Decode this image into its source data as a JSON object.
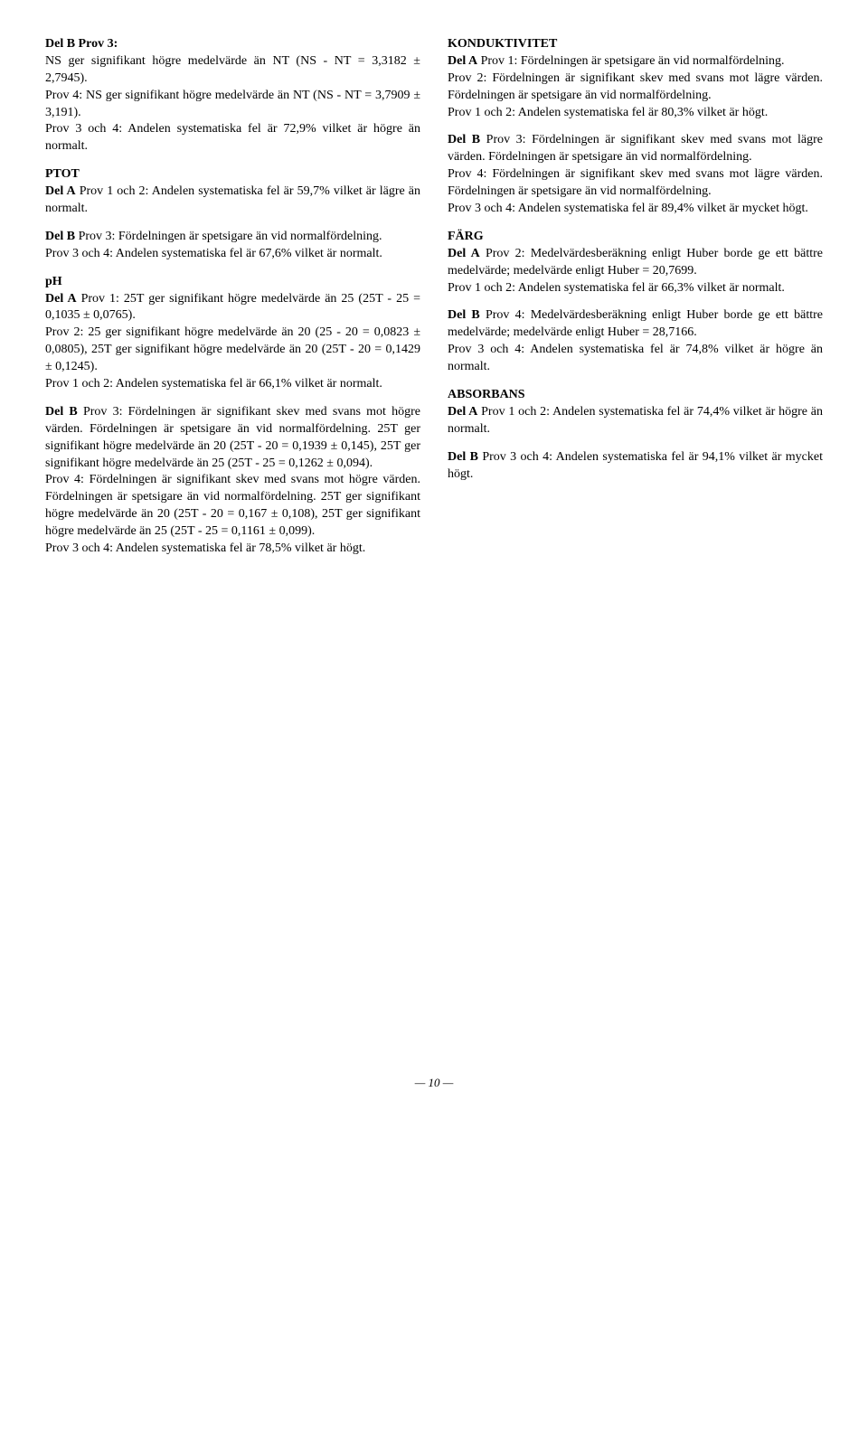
{
  "left": {
    "p1": "NS ger signifikant högre medelvärde än NT (NS - NT = 3,3182 ± 2,7945).",
    "p1lead": "Del B Prov 3:",
    "p2": "Prov 4: NS ger signifikant högre medelvärde än NT (NS - NT = 3,7909 ± 3,191).",
    "p3": "Prov 3 och 4: Andelen systematiska fel är 72,9% vilket är högre än normalt.",
    "ptot_head": "PTOT",
    "ptot_a": " Prov 1 och 2: Andelen systematiska fel är 59,7% vilket är lägre än normalt.",
    "ptot_a_lead": "Del A",
    "ptot_b": " Prov 3: Fördelningen är spetsigare än vid normalfördelning.",
    "ptot_b_lead": "Del B",
    "ptot_b2": "Prov 3 och 4: Andelen systematiska fel är 67,6% vilket är normalt.",
    "ph_head": "pH",
    "ph_a": " Prov 1: 25T ger signifikant högre medelvärde än 25 (25T - 25 = 0,1035 ± 0,0765).",
    "ph_a_lead": "Del A",
    "ph_a2": "Prov 2: 25 ger signifikant högre medelvärde än 20 (25 - 20 = 0,0823 ± 0,0805), 25T ger signifikant högre medelvärde än 20 (25T - 20 = 0,1429 ± 0,1245).",
    "ph_a3": "Prov 1 och 2: Andelen systematiska fel är 66,1% vilket är normalt.",
    "ph_b": " Prov 3: Fördelningen är signifikant skev med svans mot högre värden. Fördelningen är spetsigare än vid normalfördelning. 25T ger signifikant högre medelvärde än 20 (25T - 20 = 0,1939 ± 0,145), 25T ger signifikant högre medelvärde än 25 (25T - 25 = 0,1262 ± 0,094).",
    "ph_b_lead": "Del B",
    "ph_b2": "Prov 4: Fördelningen är signifikant skev med svans mot högre värden. Fördelningen är spetsigare än vid normalfördelning. 25T ger signifikant högre medelvärde än 20 (25T - 20 = 0,167 ± 0,108), 25T ger signifikant högre medelvärde än 25 (25T - 25 = 0,1161 ± 0,099).",
    "ph_b3": "Prov 3 och 4: Andelen systematiska fel är 78,5% vilket är högt."
  },
  "right": {
    "kond_head": "KONDUKTIVITET",
    "kond_a": " Prov 1: Fördelningen är spetsigare än vid normalfördelning.",
    "kond_a_lead": "Del A",
    "kond_a2": "Prov 2: Fördelningen är signifikant skev med svans mot lägre värden. Fördelningen är spetsigare än vid normalfördelning.",
    "kond_a3": "Prov 1 och 2: Andelen systematiska fel är 80,3% vilket är högt.",
    "kond_b": " Prov 3: Fördelningen är signifikant skev med svans mot lägre värden. Fördelningen är spetsigare än vid normalfördelning.",
    "kond_b_lead": "Del B",
    "kond_b2": "Prov 4: Fördelningen är signifikant skev med svans mot lägre värden. Fördelningen är spetsigare än vid normalfördelning.",
    "kond_b3": "Prov 3 och 4: Andelen systematiska fel är 89,4% vilket är mycket högt.",
    "farg_head": "FÄRG",
    "farg_a": " Prov 2: Medelvärdesberäkning enligt Huber borde ge ett bättre medelvärde; medelvärde enligt Huber = 20,7699.",
    "farg_a_lead": "Del A",
    "farg_a2": "Prov 1 och 2: Andelen systematiska fel är 66,3% vilket är normalt.",
    "farg_b": " Prov 4: Medelvärdesberäkning enligt Huber borde ge ett bättre medelvärde; medelvärde enligt Huber = 28,7166.",
    "farg_b_lead": "Del B",
    "farg_b2": "Prov 3 och 4: Andelen systematiska fel är 74,8% vilket är högre än normalt.",
    "abs_head": "ABSORBANS",
    "abs_a": " Prov 1 och 2: Andelen systematiska fel är 74,4% vilket är högre än normalt.",
    "abs_a_lead": "Del A",
    "abs_b": " Prov 3 och 4: Andelen systematiska fel är 94,1% vilket är mycket högt.",
    "abs_b_lead": "Del B"
  },
  "page": "— 10 —"
}
